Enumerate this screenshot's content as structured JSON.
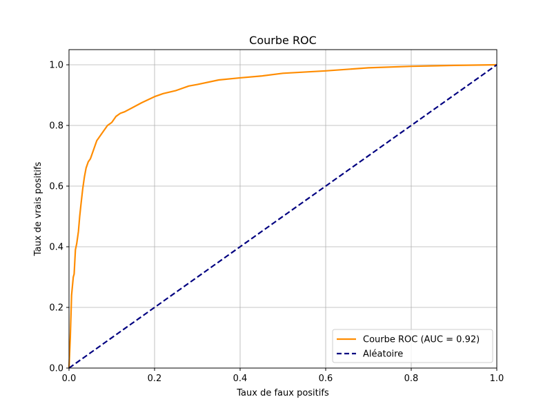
{
  "chart_data": {
    "type": "line",
    "title": "Courbe ROC",
    "xlabel": "Taux de faux positifs",
    "ylabel": "Taux de vrais positifs",
    "xlim": [
      0.0,
      1.0
    ],
    "ylim": [
      0.0,
      1.05
    ],
    "x_ticks": [
      "0.0",
      "0.2",
      "0.4",
      "0.6",
      "0.8",
      "1.0"
    ],
    "y_ticks": [
      "0.0",
      "0.2",
      "0.4",
      "0.6",
      "0.8",
      "1.0"
    ],
    "grid": true,
    "legend_position": "lower-right",
    "series": [
      {
        "name": "Courbe ROC (AUC = 0.92)",
        "color": "#ff8c00",
        "style": "solid",
        "x": [
          0.0,
          0.003,
          0.006,
          0.01,
          0.012,
          0.015,
          0.018,
          0.022,
          0.025,
          0.028,
          0.032,
          0.036,
          0.04,
          0.045,
          0.05,
          0.055,
          0.06,
          0.065,
          0.07,
          0.08,
          0.09,
          0.1,
          0.11,
          0.12,
          0.13,
          0.15,
          0.17,
          0.2,
          0.22,
          0.25,
          0.28,
          0.3,
          0.35,
          0.4,
          0.45,
          0.5,
          0.6,
          0.7,
          0.8,
          0.9,
          1.0
        ],
        "y": [
          0.0,
          0.1,
          0.24,
          0.3,
          0.31,
          0.39,
          0.41,
          0.45,
          0.5,
          0.54,
          0.59,
          0.63,
          0.66,
          0.68,
          0.69,
          0.71,
          0.73,
          0.75,
          0.76,
          0.78,
          0.8,
          0.81,
          0.83,
          0.84,
          0.845,
          0.86,
          0.875,
          0.895,
          0.905,
          0.915,
          0.93,
          0.935,
          0.95,
          0.957,
          0.963,
          0.972,
          0.98,
          0.99,
          0.995,
          0.998,
          1.0
        ]
      },
      {
        "name": "Aléatoire",
        "color": "#000080",
        "style": "dashed",
        "x": [
          0.0,
          1.0
        ],
        "y": [
          0.0,
          1.0
        ]
      }
    ]
  }
}
